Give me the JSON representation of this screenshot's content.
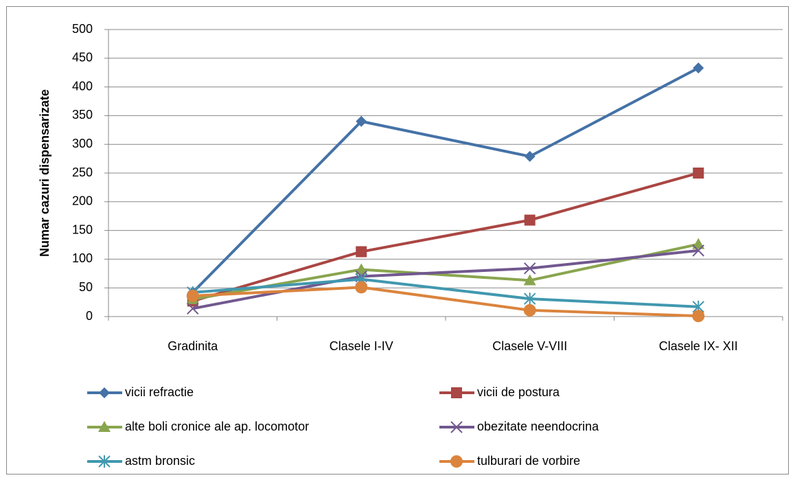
{
  "chart_data": {
    "type": "line",
    "y_label": "Numar cazuri dispensarizate",
    "categories": [
      "Gradinita",
      "Clasele I-IV",
      "Clasele V-VIII",
      "Clasele IX- XII"
    ],
    "series": [
      {
        "name": "vicii refractie",
        "color": "#4572a7",
        "marker": "diamond",
        "values": [
          42,
          340,
          279,
          433
        ]
      },
      {
        "name": "vicii de postura",
        "color": "#aa4643",
        "marker": "square",
        "values": [
          27,
          113,
          168,
          250
        ]
      },
      {
        "name": "alte boli cronice ale ap. locomotor",
        "color": "#89a54e",
        "marker": "triangle",
        "values": [
          30,
          82,
          63,
          126
        ]
      },
      {
        "name": "obezitate neendocrina",
        "color": "#71588f",
        "marker": "x",
        "values": [
          14,
          70,
          84,
          115
        ]
      },
      {
        "name": "astm bronsic",
        "color": "#4198af",
        "marker": "star",
        "values": [
          42,
          65,
          31,
          17
        ]
      },
      {
        "name": "tulburari de vorbire",
        "color": "#db843d",
        "marker": "circle",
        "values": [
          36,
          51,
          11,
          1
        ]
      }
    ],
    "ylim": [
      0,
      500
    ],
    "yticks": [
      0,
      50,
      100,
      150,
      200,
      250,
      300,
      350,
      400,
      450,
      500
    ],
    "grid": true,
    "legend": "bottom"
  }
}
